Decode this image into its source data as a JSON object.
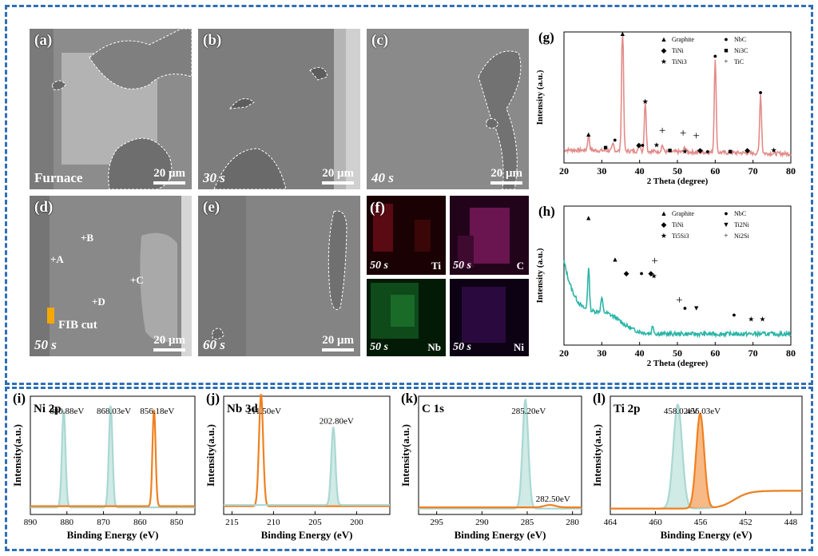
{
  "panels": {
    "a": {
      "label": "(a)",
      "condition": "Furnace",
      "scale": "20 μm"
    },
    "b": {
      "label": "(b)",
      "time": "30 s",
      "scale": "20 μm"
    },
    "c": {
      "label": "(c)",
      "time": "40 s",
      "scale": "20 μm"
    },
    "d": {
      "label": "(d)",
      "time": "50 s",
      "scale": "20 μm",
      "points": [
        "+B",
        "+A",
        "+C",
        "+D"
      ],
      "fib": "FIB cut"
    },
    "e": {
      "label": "(e)",
      "time": "60 s",
      "scale": "20 μm"
    },
    "f": {
      "label": "(f)",
      "maps": [
        {
          "time": "50 s",
          "element": "Ti",
          "color": "#c0202a"
        },
        {
          "time": "50 s",
          "element": "C",
          "color": "#c0208f"
        },
        {
          "time": "50 s",
          "element": "Nb",
          "color": "#22a43a"
        },
        {
          "time": "50 s",
          "element": "Ni",
          "color": "#8a2ea8"
        }
      ]
    }
  },
  "chart_data": [
    {
      "id": "g",
      "type": "line",
      "label": "(g)",
      "xlabel": "2 Theta (degree)",
      "ylabel": "Intensity (a.u.)",
      "xlim": [
        20,
        80
      ],
      "xticks": [
        20,
        30,
        40,
        50,
        60,
        70,
        80
      ],
      "color": "#e28b88",
      "legend": [
        "Graphite",
        "NbC",
        "TiNi",
        "Ni3C",
        "TiNi3",
        "TiC"
      ],
      "legend_symbols": [
        "▲",
        "●",
        "◆",
        "■",
        "★",
        "+"
      ],
      "peaks": [
        {
          "x": 26.5,
          "h": 0.12
        },
        {
          "x": 35.5,
          "h": 1.0
        },
        {
          "x": 41.5,
          "h": 0.38
        },
        {
          "x": 60.0,
          "h": 0.72
        },
        {
          "x": 72.0,
          "h": 0.45
        },
        {
          "x": 33.0,
          "h": 0.05
        },
        {
          "x": 40.0,
          "h": 0.06
        },
        {
          "x": 46.0,
          "h": 0.05
        },
        {
          "x": 52.0,
          "h": 0.04
        }
      ],
      "markers": [
        {
          "x": 26.5,
          "s": "▲",
          "h": 0.2
        },
        {
          "x": 35.5,
          "s": "▲",
          "h": 1.07
        },
        {
          "x": 31.0,
          "s": "■",
          "h": 0.1
        },
        {
          "x": 33.5,
          "s": "●",
          "h": 0.16
        },
        {
          "x": 39.8,
          "s": "◆",
          "h": 0.12
        },
        {
          "x": 40.8,
          "s": "●",
          "h": 0.12
        },
        {
          "x": 41.5,
          "s": "★",
          "h": 0.45
        },
        {
          "x": 44.5,
          "s": "★",
          "h": 0.12
        },
        {
          "x": 46.0,
          "s": "+",
          "h": 0.22
        },
        {
          "x": 48.0,
          "s": "■",
          "h": 0.08
        },
        {
          "x": 51.5,
          "s": "+",
          "h": 0.2
        },
        {
          "x": 52.0,
          "s": "★",
          "h": 0.07
        },
        {
          "x": 55.0,
          "s": "+",
          "h": 0.18
        },
        {
          "x": 56.0,
          "s": "◆",
          "h": 0.08
        },
        {
          "x": 58.0,
          "s": "●",
          "h": 0.07
        },
        {
          "x": 60.0,
          "s": "●",
          "h": 0.8
        },
        {
          "x": 64.0,
          "s": "■",
          "h": 0.07
        },
        {
          "x": 68.5,
          "s": "◆",
          "h": 0.08
        },
        {
          "x": 72.0,
          "s": "●",
          "h": 0.52
        },
        {
          "x": 75.5,
          "s": "★",
          "h": 0.08
        }
      ]
    },
    {
      "id": "h",
      "type": "line",
      "label": "(h)",
      "xlabel": "2 Theta (degree)",
      "ylabel": "Intensity (a.u.)",
      "xlim": [
        20,
        80
      ],
      "xticks": [
        20,
        30,
        40,
        50,
        60,
        70,
        80
      ],
      "color": "#2bb5a7",
      "legend": [
        "Graphite",
        "NbC",
        "TiNi",
        "Ti2Ni",
        "Ti5Si3",
        "Ni2Si"
      ],
      "legend_symbols": [
        "▲",
        "●",
        "◆",
        "▼",
        "★",
        "+"
      ],
      "peaks": [
        {
          "x": 26.5,
          "h": 0.3
        },
        {
          "x": 30.0,
          "h": 0.1
        },
        {
          "x": 43.5,
          "h": 0.06
        }
      ],
      "markers": [
        {
          "x": 26.5,
          "s": "▲",
          "h": 0.9
        },
        {
          "x": 33.5,
          "s": "▲",
          "h": 0.6
        },
        {
          "x": 36.5,
          "s": "◆",
          "h": 0.5
        },
        {
          "x": 40.5,
          "s": "●",
          "h": 0.5
        },
        {
          "x": 43.0,
          "s": "◆",
          "h": 0.5
        },
        {
          "x": 44.0,
          "s": "+",
          "h": 0.58
        },
        {
          "x": 43.8,
          "s": "★",
          "h": 0.48
        },
        {
          "x": 50.5,
          "s": "+",
          "h": 0.3
        },
        {
          "x": 52.0,
          "s": "●",
          "h": 0.25
        },
        {
          "x": 55.0,
          "s": "▼",
          "h": 0.25
        },
        {
          "x": 65.0,
          "s": "●",
          "h": 0.2
        },
        {
          "x": 69.5,
          "s": "★",
          "h": 0.17
        },
        {
          "x": 72.5,
          "s": "★",
          "h": 0.17
        }
      ]
    },
    {
      "id": "i",
      "type": "line",
      "label": "(i)",
      "title": "Ni 2p",
      "xlabel": "Binding Energy (eV)",
      "ylabel": "Intensity(a.u.)",
      "xlim": [
        890,
        845
      ],
      "xticks": [
        890,
        880,
        870,
        860,
        850
      ],
      "series": [
        {
          "color": "#a9d8d2",
          "fill": true,
          "peaks": [
            {
              "x": 880.88,
              "h": 0.82,
              "w": 0.7,
              "label": "880.88eV"
            },
            {
              "x": 868.03,
              "h": 0.86,
              "w": 0.7,
              "label": "868.03eV"
            }
          ]
        },
        {
          "color": "#f08020",
          "fill": false,
          "peaks": [
            {
              "x": 856.18,
              "h": 0.82,
              "w": 0.6,
              "label": "856.18eV"
            }
          ]
        }
      ]
    },
    {
      "id": "j",
      "type": "line",
      "label": "(j)",
      "title": "Nb 3d",
      "xlabel": "Binding Energy (eV)",
      "ylabel": "Intensity(a.u.)",
      "xlim": [
        216,
        196
      ],
      "xticks": [
        215,
        210,
        205,
        200
      ],
      "series": [
        {
          "color": "#f08020",
          "fill": false,
          "peaks": [
            {
              "x": 211.5,
              "h": 0.95,
              "w": 0.35,
              "label": "211.50eV"
            }
          ]
        },
        {
          "color": "#a9d8d2",
          "fill": true,
          "peaks": [
            {
              "x": 202.8,
              "h": 0.66,
              "w": 0.35,
              "label": "202.80eV"
            }
          ]
        }
      ]
    },
    {
      "id": "k",
      "type": "line",
      "label": "(k)",
      "title": "C 1s",
      "xlabel": "Binding Energy (eV)",
      "ylabel": "Intensity(a.u.)",
      "xlim": [
        297,
        279
      ],
      "xticks": [
        295,
        290,
        285,
        280
      ],
      "series": [
        {
          "color": "#a9d8d2",
          "fill": true,
          "peaks": [
            {
              "x": 285.2,
              "h": 0.92,
              "w": 0.45,
              "label": "285.20eV"
            }
          ]
        },
        {
          "color": "#f08020",
          "fill": false,
          "peaks": [
            {
              "x": 282.5,
              "h": 0.02,
              "w": 0.9,
              "label": "282.50eV"
            }
          ]
        }
      ]
    },
    {
      "id": "l",
      "type": "line",
      "label": "(l)",
      "title": "Ti 2p",
      "xlabel": "Binding Energy (eV)",
      "ylabel": "Intensity(a.u.)",
      "xlim": [
        464,
        447
      ],
      "xticks": [
        464,
        460,
        456,
        452,
        448
      ],
      "series": [
        {
          "color": "#a9d8d2",
          "fill": true,
          "peaks": [
            {
              "x": 458.02,
              "h": 0.88,
              "w": 0.55,
              "label": "458.02eV"
            }
          ]
        },
        {
          "color": "#f08020",
          "fill": true,
          "peaks": [
            {
              "x": 456.03,
              "h": 0.8,
              "w": 0.5,
              "label": "456.03eV"
            }
          ]
        }
      ]
    }
  ]
}
